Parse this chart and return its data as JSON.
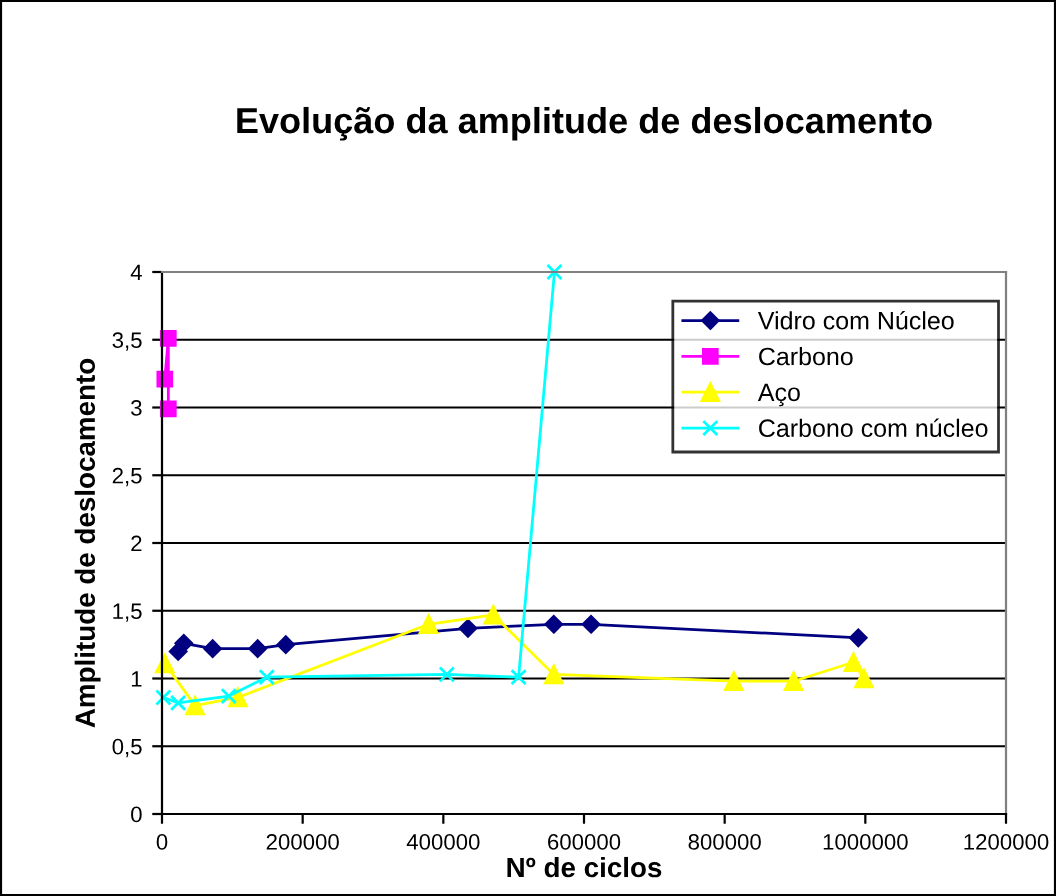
{
  "chart_data": {
    "type": "line",
    "title": "Evolução da amplitude de deslocamento",
    "xlabel": "Nº de ciclos",
    "ylabel": "Amplitude de deslocamento",
    "xlim": [
      0,
      1200000
    ],
    "xticks": [
      0,
      200000,
      400000,
      600000,
      800000,
      1000000,
      1200000
    ],
    "ylim": [
      0,
      4
    ],
    "yticks": [
      {
        "value": 0,
        "label": "0"
      },
      {
        "value": 0.5,
        "label": "0,5"
      },
      {
        "value": 1,
        "label": "1"
      },
      {
        "value": 1.5,
        "label": "1,5"
      },
      {
        "value": 2,
        "label": "2"
      },
      {
        "value": 2.5,
        "label": "2,5"
      },
      {
        "value": 3,
        "label": "3"
      },
      {
        "value": 3.5,
        "label": "3,5"
      },
      {
        "value": 4,
        "label": "4"
      }
    ],
    "grid": "y",
    "legend": "top right",
    "series": [
      {
        "name": "Vidro com Núcleo",
        "color": "#000080",
        "marker": "diamond",
        "x": [
          23000,
          31000,
          72000,
          136000,
          176000,
          435000,
          557000,
          610000,
          990000
        ],
        "values": [
          1.2,
          1.26,
          1.22,
          1.22,
          1.25,
          1.37,
          1.4,
          1.4,
          1.3
        ]
      },
      {
        "name": "Carbono",
        "color": "#ff00ff",
        "marker": "square",
        "x": [
          4000,
          9000,
          9000
        ],
        "values": [
          3.21,
          3.51,
          2.99
        ]
      },
      {
        "name": "Aço",
        "color": "#ffff00",
        "marker": "triangle",
        "x": [
          4000,
          47000,
          108000,
          379000,
          471000,
          557000,
          813000,
          898000,
          983000,
          998000
        ],
        "values": [
          1.11,
          0.8,
          0.86,
          1.4,
          1.47,
          1.03,
          0.98,
          0.98,
          1.12,
          1.0
        ]
      },
      {
        "name": "Carbono com núcleo",
        "color": "#00ffff",
        "marker": "cross",
        "x": [
          2000,
          23000,
          95000,
          149000,
          405000,
          507000,
          558000
        ],
        "values": [
          0.86,
          0.82,
          0.87,
          1.01,
          1.03,
          1.01,
          4.0
        ]
      }
    ]
  }
}
